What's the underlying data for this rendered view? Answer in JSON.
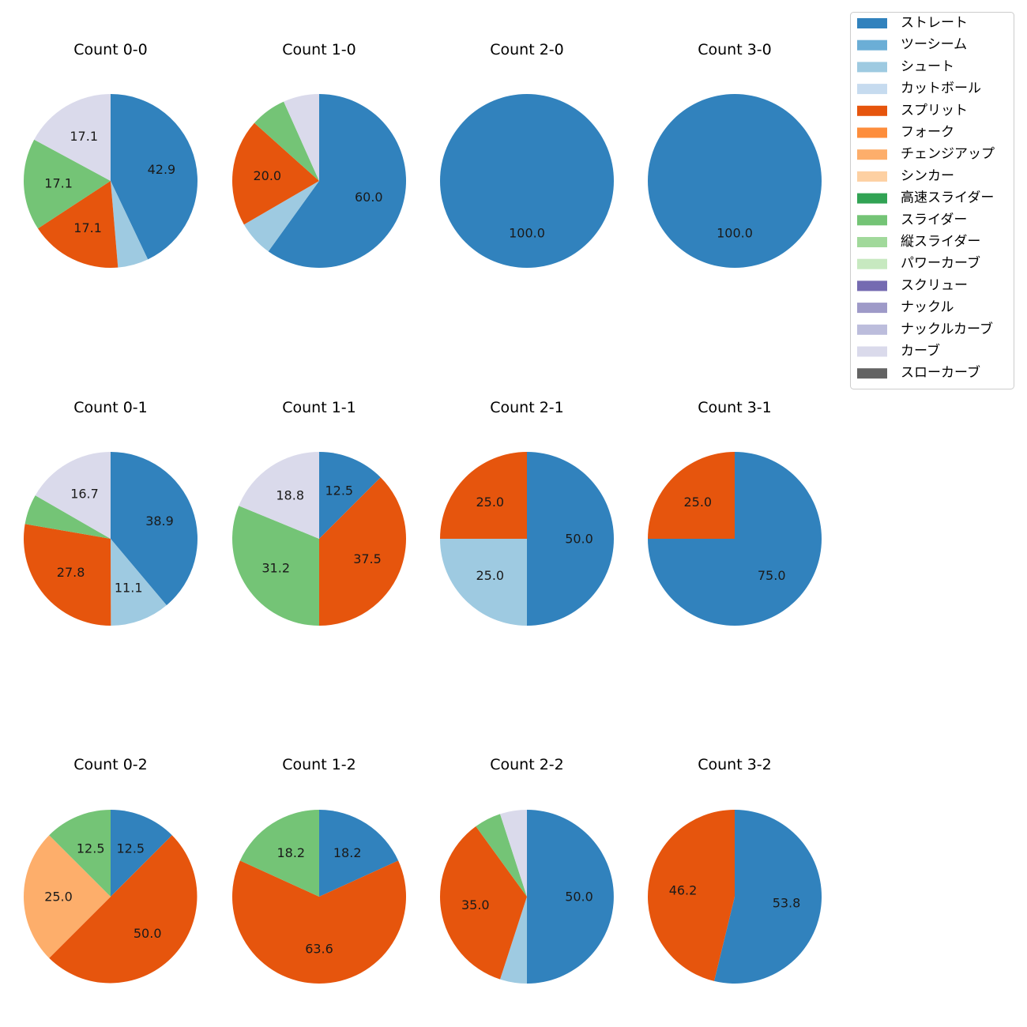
{
  "chart_data": {
    "type": "pie",
    "categories": [
      "ストレート",
      "ツーシーム",
      "シュート",
      "カットボール",
      "スプリット",
      "フォーク",
      "チェンジアップ",
      "シンカー",
      "高速スライダー",
      "スライダー",
      "縦スライダー",
      "パワーカーブ",
      "スクリュー",
      "ナックル",
      "ナックルカーブ",
      "カーブ",
      "スローカーブ"
    ],
    "colors": [
      "#3182bd",
      "#6baed6",
      "#9ecae1",
      "#c6dbef",
      "#e6550d",
      "#fd8d3c",
      "#fdae6b",
      "#fdd0a2",
      "#31a354",
      "#74c476",
      "#a1d99b",
      "#c7e9c0",
      "#756bb1",
      "#9e9ac8",
      "#bcbddc",
      "#dadaeb",
      "#636363"
    ],
    "legend": "top-right",
    "label_format": "one decimal percent",
    "charts": [
      {
        "title": "Count 0-0",
        "values": [
          42.9,
          0,
          5.7,
          0,
          17.1,
          0,
          0,
          0,
          0,
          17.1,
          0,
          0,
          0,
          0,
          0,
          17.1,
          0
        ]
      },
      {
        "title": "Count 1-0",
        "values": [
          60.0,
          0,
          6.7,
          0,
          20.0,
          0,
          0,
          0,
          0,
          6.7,
          0,
          0,
          0,
          0,
          0,
          6.7,
          0
        ]
      },
      {
        "title": "Count 2-0",
        "values": [
          100.0,
          0,
          0,
          0,
          0,
          0,
          0,
          0,
          0,
          0,
          0,
          0,
          0,
          0,
          0,
          0,
          0
        ]
      },
      {
        "title": "Count 3-0",
        "values": [
          100.0,
          0,
          0,
          0,
          0,
          0,
          0,
          0,
          0,
          0,
          0,
          0,
          0,
          0,
          0,
          0,
          0
        ]
      },
      {
        "title": "Count 0-1",
        "values": [
          38.9,
          0,
          11.1,
          0,
          27.8,
          0,
          0,
          0,
          0,
          5.6,
          0,
          0,
          0,
          0,
          0,
          16.7,
          0
        ]
      },
      {
        "title": "Count 1-1",
        "values": [
          12.5,
          0,
          0,
          0,
          37.5,
          0,
          0,
          0,
          0,
          31.2,
          0,
          0,
          0,
          0,
          0,
          18.8,
          0
        ]
      },
      {
        "title": "Count 2-1",
        "values": [
          50.0,
          0,
          25.0,
          0,
          25.0,
          0,
          0,
          0,
          0,
          0,
          0,
          0,
          0,
          0,
          0,
          0,
          0
        ]
      },
      {
        "title": "Count 3-1",
        "values": [
          75.0,
          0,
          0,
          0,
          25.0,
          0,
          0,
          0,
          0,
          0,
          0,
          0,
          0,
          0,
          0,
          0,
          0
        ]
      },
      {
        "title": "Count 0-2",
        "values": [
          12.5,
          0,
          0,
          0,
          50.0,
          0,
          25.0,
          0,
          0,
          12.5,
          0,
          0,
          0,
          0,
          0,
          0,
          0
        ]
      },
      {
        "title": "Count 1-2",
        "values": [
          18.2,
          0,
          0,
          0,
          63.6,
          0,
          0,
          0,
          0,
          18.2,
          0,
          0,
          0,
          0,
          0,
          0,
          0
        ]
      },
      {
        "title": "Count 2-2",
        "values": [
          50.0,
          0,
          5.0,
          0,
          35.0,
          0,
          0,
          0,
          0,
          5.0,
          0,
          0,
          0,
          0,
          0,
          5.0,
          0
        ]
      },
      {
        "title": "Count 3-2",
        "values": [
          53.8,
          0,
          0,
          0,
          46.2,
          0,
          0,
          0,
          0,
          0,
          0,
          0,
          0,
          0,
          0,
          0,
          0
        ]
      }
    ]
  }
}
